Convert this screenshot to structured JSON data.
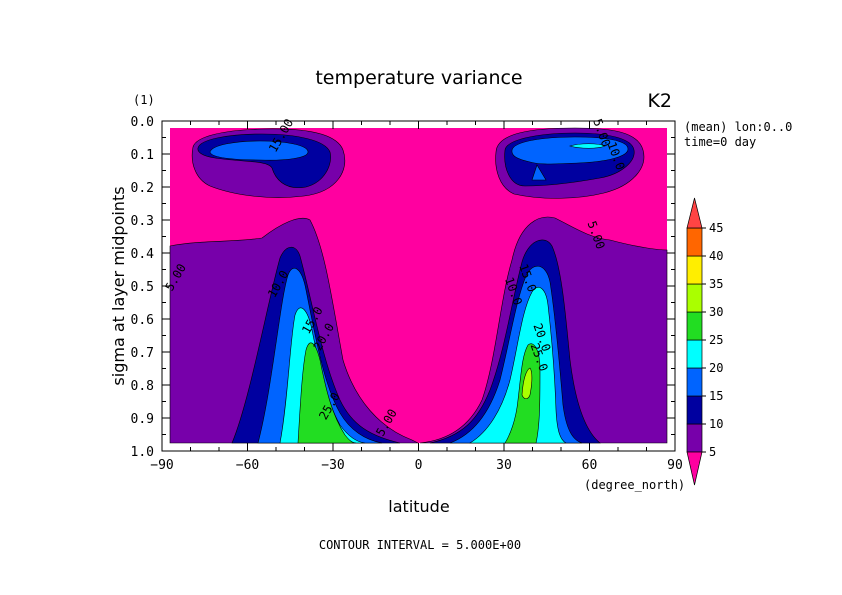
{
  "chart_data": {
    "type": "contour",
    "title": "temperature variance",
    "top_left_label": "(1)",
    "top_right_label": "K2",
    "info_lines": [
      "(mean) lon:0..0",
      "time=0 day"
    ],
    "xlabel": "latitude",
    "xunit": "(degree_north)",
    "ylabel": "sigma at layer midpoints",
    "footer": "CONTOUR INTERVAL = 5.000E+00",
    "xlim": [
      -90,
      90
    ],
    "ylim": [
      1.0,
      0.0
    ],
    "x_ticks": [
      "−90",
      "−60",
      "−30",
      "0",
      "30",
      "60",
      "90"
    ],
    "x_tick_values": [
      -90,
      -60,
      -30,
      0,
      30,
      60,
      90
    ],
    "y_ticks": [
      "0.0",
      "0.1",
      "0.2",
      "0.3",
      "0.4",
      "0.5",
      "0.6",
      "0.7",
      "0.8",
      "0.9",
      "1.0"
    ],
    "y_tick_values": [
      0.0,
      0.1,
      0.2,
      0.3,
      0.4,
      0.5,
      0.6,
      0.7,
      0.8,
      0.9,
      1.0
    ],
    "contour_interval": 5,
    "colorbar": {
      "levels": [
        "5",
        "10",
        "15",
        "20",
        "25",
        "30",
        "35",
        "40",
        "45"
      ],
      "colors": [
        "#ff00a0",
        "#7700aa",
        "#0000a0",
        "#0064ff",
        "#00ffff",
        "#22dd22",
        "#aaff00",
        "#ffee00",
        "#ff6600",
        "#ff4444"
      ]
    },
    "contour_labels": [
      {
        "text": "5.00",
        "x": -84,
        "y": 0.48
      },
      {
        "text": "10.0",
        "x": -48,
        "y": 0.5
      },
      {
        "text": "15.0",
        "x": -36,
        "y": 0.61
      },
      {
        "text": "20.0",
        "x": -32,
        "y": 0.66
      },
      {
        "text": "25.0",
        "x": -30,
        "y": 0.87
      },
      {
        "text": "5.00",
        "x": -10,
        "y": 0.92
      },
      {
        "text": "15.00",
        "x": -47,
        "y": 0.05
      },
      {
        "text": "5.00",
        "x": 63,
        "y": 0.04
      },
      {
        "text": "10.0",
        "x": 68,
        "y": 0.11
      },
      {
        "text": "5.00",
        "x": 61,
        "y": 0.35
      },
      {
        "text": "10.0",
        "x": 32,
        "y": 0.52
      },
      {
        "text": "15.0",
        "x": 37,
        "y": 0.48
      },
      {
        "text": "20.0",
        "x": 42,
        "y": 0.66
      },
      {
        "text": "25.0",
        "x": 41,
        "y": 0.72
      }
    ]
  }
}
